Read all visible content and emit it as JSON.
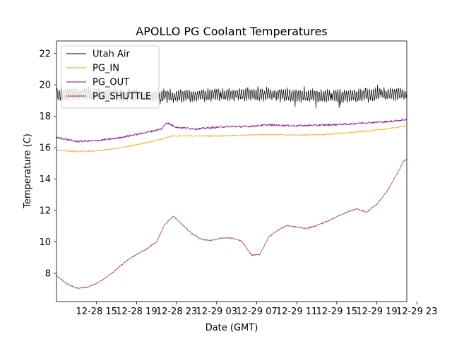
{
  "chart_data": {
    "type": "line",
    "title": "APOLLO PG Coolant Temperatures",
    "xlabel": "Date (GMT)",
    "ylabel": "Temperature (C)",
    "x_unit": "hours since 12-28 00:00 GMT",
    "xlim": [
      11,
      46
    ],
    "ylim": [
      6.2,
      22.8
    ],
    "x_ticks": [
      {
        "value": 15,
        "label": "12-28 15"
      },
      {
        "value": 19,
        "label": "12-28 19"
      },
      {
        "value": 23,
        "label": "12-28 23"
      },
      {
        "value": 27,
        "label": "12-29 03"
      },
      {
        "value": 31,
        "label": "12-29 07"
      },
      {
        "value": 35,
        "label": "12-29 11"
      },
      {
        "value": 39,
        "label": "12-29 15"
      },
      {
        "value": 43,
        "label": "12-29 19"
      },
      {
        "value": 47,
        "label": "12-29 23"
      }
    ],
    "y_ticks": [
      {
        "value": 8,
        "label": "8"
      },
      {
        "value": 10,
        "label": "10"
      },
      {
        "value": 12,
        "label": "12"
      },
      {
        "value": 14,
        "label": "14"
      },
      {
        "value": 16,
        "label": "16"
      },
      {
        "value": 18,
        "label": "18"
      },
      {
        "value": 20,
        "label": "20"
      },
      {
        "value": 22,
        "label": "22"
      }
    ],
    "legend_position": "top-left",
    "series": [
      {
        "name": "Utah Air",
        "color": "#000000",
        "oscillation": 0.4,
        "x": [
          11,
          16,
          21,
          24,
          28,
          32,
          36,
          40,
          44,
          46
        ],
        "values": [
          19.4,
          19.4,
          19.3,
          19.3,
          19.4,
          19.4,
          19.3,
          19.3,
          19.4,
          19.4
        ]
      },
      {
        "name": "PG_IN",
        "color": "#ffa500",
        "x": [
          11,
          13,
          15,
          17,
          19,
          21,
          22.5,
          24,
          27,
          30,
          32,
          35,
          38,
          40,
          42,
          44,
          46
        ],
        "values": [
          15.85,
          15.75,
          15.8,
          15.95,
          16.2,
          16.45,
          16.75,
          16.75,
          16.75,
          16.8,
          16.85,
          16.8,
          16.85,
          16.95,
          17.05,
          17.2,
          17.4
        ]
      },
      {
        "name": "PG_OUT",
        "color": "#800080",
        "x": [
          11,
          13,
          15,
          17,
          19,
          20.5,
          21.5,
          22,
          23,
          25,
          28,
          30,
          32,
          35,
          38,
          40,
          42,
          44,
          46
        ],
        "values": [
          16.65,
          16.4,
          16.45,
          16.6,
          16.85,
          17.05,
          17.2,
          17.6,
          17.3,
          17.2,
          17.35,
          17.35,
          17.45,
          17.4,
          17.45,
          17.5,
          17.6,
          17.65,
          17.8
        ]
      },
      {
        "name": "PG_SHUTTLE",
        "color": "#a52a2a",
        "x": [
          11,
          12,
          13,
          14,
          15,
          16,
          17,
          18,
          19,
          20,
          21,
          21.8,
          22.7,
          23.3,
          24.5,
          25.5,
          26.5,
          27.5,
          28.5,
          29.5,
          30.5,
          31.3,
          32.2,
          33,
          34,
          35,
          36,
          37,
          38,
          39,
          40,
          41,
          42,
          43,
          44,
          45,
          45.7,
          46
        ],
        "values": [
          7.85,
          7.35,
          7.05,
          7.1,
          7.35,
          7.75,
          8.25,
          8.8,
          9.2,
          9.55,
          10.0,
          11.1,
          11.65,
          11.25,
          10.55,
          10.15,
          10.1,
          10.25,
          10.25,
          10.05,
          9.15,
          9.2,
          10.3,
          10.7,
          11.05,
          10.95,
          10.85,
          11.05,
          11.3,
          11.6,
          11.9,
          12.1,
          11.9,
          12.4,
          13.2,
          14.3,
          15.15,
          15.25
        ]
      }
    ]
  }
}
